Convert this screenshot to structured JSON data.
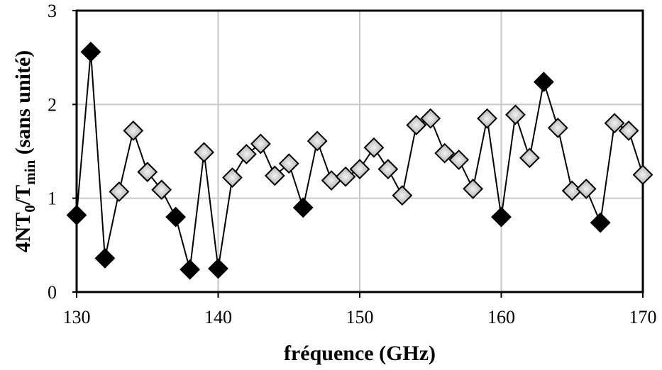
{
  "chart_data": {
    "type": "scatter",
    "xlabel": "fréquence (GHz)",
    "ylabel": {
      "parts": [
        {
          "text": "4NT",
          "kind": "normal"
        },
        {
          "text": "0",
          "kind": "sub"
        },
        {
          "text": "/T",
          "kind": "normal"
        },
        {
          "text": "min",
          "kind": "sub"
        },
        {
          "text": " (sans unité)",
          "kind": "normal"
        }
      ]
    },
    "xlim": [
      130,
      170
    ],
    "ylim": [
      0,
      3
    ],
    "xticks": [
      "130",
      "140",
      "150",
      "160",
      "170"
    ],
    "yticks": [
      "0",
      "1",
      "2",
      "3"
    ],
    "grid": true,
    "colors": {
      "line": "#000000",
      "grid": "#c8c8c8",
      "marker_dark": "#000000",
      "marker_light": "#b4b4b4",
      "marker_light_highlight": "#f2f2f2"
    },
    "series": [
      {
        "marker": "diamond",
        "x": [
          130,
          131,
          132,
          133,
          134,
          135,
          136,
          137,
          138,
          139,
          140,
          141,
          142,
          143,
          144,
          145,
          146,
          147,
          148,
          149,
          150,
          151,
          152,
          153,
          154,
          155,
          156,
          157,
          158,
          159,
          160,
          161,
          162,
          163,
          164,
          165,
          166,
          167,
          168,
          169,
          170
        ],
        "y": [
          0.82,
          2.56,
          0.36,
          1.07,
          1.72,
          1.28,
          1.09,
          0.8,
          0.24,
          1.49,
          0.25,
          1.22,
          1.47,
          1.58,
          1.24,
          1.37,
          0.9,
          1.61,
          1.19,
          1.23,
          1.31,
          1.54,
          1.31,
          1.03,
          1.78,
          1.85,
          1.48,
          1.41,
          1.1,
          1.85,
          0.8,
          1.89,
          1.43,
          2.24,
          1.75,
          1.08,
          1.1,
          0.74,
          1.8,
          1.72,
          1.25
        ],
        "fill": [
          "dark",
          "dark",
          "dark",
          "light",
          "light",
          "light",
          "light",
          "dark",
          "dark",
          "light",
          "dark",
          "light",
          "light",
          "light",
          "light",
          "light",
          "dark",
          "light",
          "light",
          "light",
          "light",
          "light",
          "light",
          "light",
          "light",
          "light",
          "light",
          "light",
          "light",
          "light",
          "dark",
          "light",
          "light",
          "dark",
          "light",
          "light",
          "light",
          "dark",
          "light",
          "light",
          "light"
        ]
      }
    ]
  }
}
